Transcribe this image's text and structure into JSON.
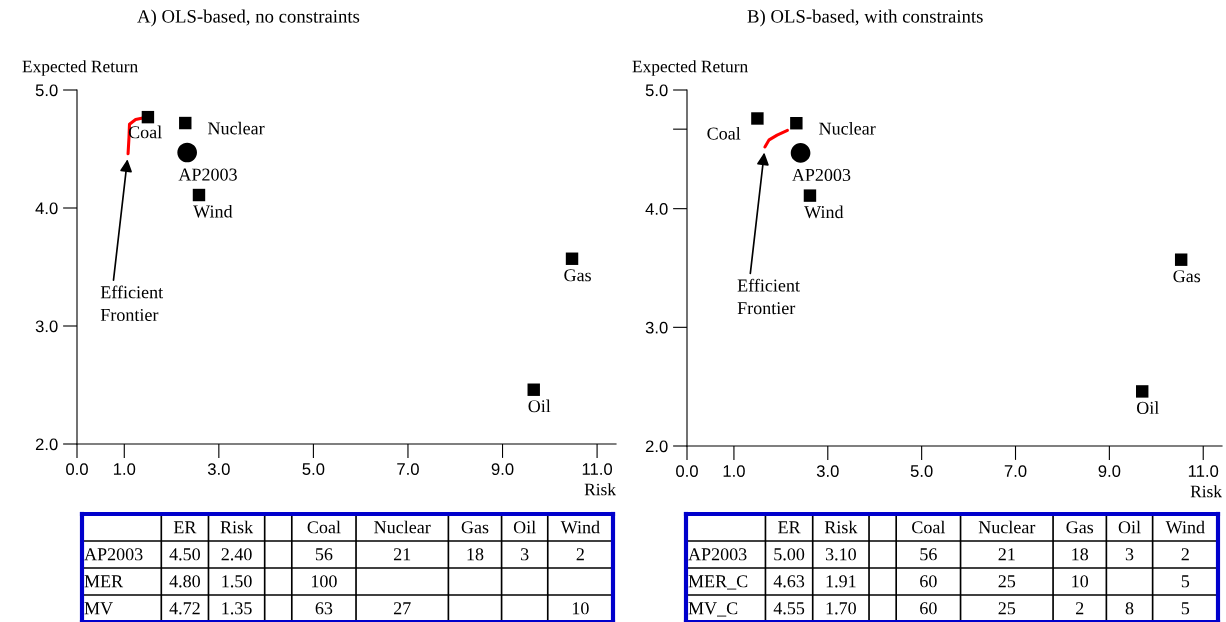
{
  "chart_data": [
    {
      "type": "scatter",
      "title": "A) OLS-based, no constraints",
      "xlabel": "Risk",
      "ylabel": "Expected Return",
      "xlim": [
        0,
        11.4
      ],
      "ylim": [
        2.0,
        5.0
      ],
      "xticks": [
        {
          "value": 0,
          "label": "0.0"
        },
        {
          "value": 1,
          "label": "1.0"
        },
        {
          "value": 3,
          "label": "3.0"
        },
        {
          "value": 5,
          "label": "5.0"
        },
        {
          "value": 7,
          "label": "7.0"
        },
        {
          "value": 9,
          "label": "9.0"
        },
        {
          "value": 11,
          "label": "11.0"
        }
      ],
      "yticks": [
        {
          "value": 2,
          "label": "2.0"
        },
        {
          "value": 3,
          "label": "3.0"
        },
        {
          "value": 4,
          "label": "4.0"
        },
        {
          "value": 5,
          "label": "5.0"
        }
      ],
      "grid": false,
      "legend": false,
      "series": [
        {
          "type": "line",
          "color": "#ff0000",
          "marker": "none",
          "line_style": "solid",
          "x": [
            1.08,
            1.1,
            1.11,
            1.24,
            1.47
          ],
          "values": [
            4.46,
            4.6,
            4.71,
            4.75,
            4.77
          ]
        },
        {
          "name": "Coal",
          "color": "#000000",
          "marker": "square",
          "x": [
            1.5
          ],
          "values": [
            4.77
          ]
        },
        {
          "name": "Nuclear",
          "color": "#000000",
          "marker": "square",
          "x": [
            2.29
          ],
          "values": [
            4.72
          ]
        },
        {
          "name": "AP2003",
          "color": "#000000",
          "marker": "circle",
          "x": [
            2.33
          ],
          "values": [
            4.47
          ]
        },
        {
          "name": "Wind",
          "color": "#000000",
          "marker": "square",
          "x": [
            2.58
          ],
          "values": [
            4.11
          ]
        },
        {
          "name": "Gas",
          "color": "#000000",
          "marker": "square",
          "x": [
            10.47
          ],
          "values": [
            3.57
          ]
        },
        {
          "name": "Oil",
          "color": "#000000",
          "marker": "square",
          "x": [
            9.66
          ],
          "values": [
            2.46
          ]
        }
      ],
      "annotations": [
        {
          "text": "Efficient\nFrontier",
          "x": 1.08,
          "y": 4.46
        }
      ]
    },
    {
      "type": "scatter",
      "title": "B) OLS-based, with constraints",
      "xlabel": "Risk",
      "ylabel": "Expected Return",
      "xlim": [
        0,
        11.4
      ],
      "ylim": [
        2.0,
        5.0
      ],
      "xticks": [
        {
          "value": 0,
          "label": "0.0"
        },
        {
          "value": 1,
          "label": "1.0"
        },
        {
          "value": 3,
          "label": "3.0"
        },
        {
          "value": 5,
          "label": "5.0"
        },
        {
          "value": 7,
          "label": "7.0"
        },
        {
          "value": 9,
          "label": "9.0"
        },
        {
          "value": 11,
          "label": "11.0"
        }
      ],
      "yticks": [
        {
          "value": 2,
          "label": "2.0"
        },
        {
          "value": 3,
          "label": "3.0"
        },
        {
          "value": 4,
          "label": "4.0"
        },
        {
          "value": 4.67,
          "label": null
        },
        {
          "value": 5,
          "label": "5.0"
        }
      ],
      "grid": false,
      "legend": false,
      "series": [
        {
          "type": "line",
          "color": "#ff0000",
          "marker": "none",
          "line_style": "solid",
          "x": [
            1.66,
            1.75,
            1.92,
            2.14
          ],
          "values": [
            4.52,
            4.58,
            4.62,
            4.66
          ]
        },
        {
          "name": "Coal",
          "color": "#000000",
          "marker": "square",
          "x": [
            1.5
          ],
          "values": [
            4.76
          ]
        },
        {
          "name": "Nuclear",
          "color": "#000000",
          "marker": "square",
          "x": [
            2.33
          ],
          "values": [
            4.72
          ]
        },
        {
          "name": "AP2003",
          "color": "#000000",
          "marker": "circle",
          "x": [
            2.42
          ],
          "values": [
            4.47
          ]
        },
        {
          "name": "Wind",
          "color": "#000000",
          "marker": "square",
          "x": [
            2.62
          ],
          "values": [
            4.11
          ]
        },
        {
          "name": "Gas",
          "color": "#000000",
          "marker": "square",
          "x": [
            10.53
          ],
          "values": [
            3.57
          ]
        },
        {
          "name": "Oil",
          "color": "#000000",
          "marker": "square",
          "x": [
            9.7
          ],
          "values": [
            2.46
          ]
        }
      ],
      "annotations": [
        {
          "text": "Efficient\nFrontier",
          "x": 1.66,
          "y": 4.52
        }
      ]
    },
    {
      "type": "other",
      "categories": [
        "ER",
        "Risk",
        null,
        "Coal",
        "Nuclear",
        "Gas",
        "Oil",
        "Wind"
      ],
      "y_categories": [
        "AP2003",
        "MER",
        "MV"
      ],
      "cell_labels": [
        [
          "4.50",
          "2.40",
          null,
          "56",
          "21",
          "18",
          "3",
          "2"
        ],
        [
          "4.80",
          "1.50",
          null,
          "100",
          null,
          null,
          null,
          null
        ],
        [
          "4.72",
          "1.35",
          null,
          "63",
          "27",
          null,
          null,
          "10"
        ]
      ]
    },
    {
      "type": "other",
      "categories": [
        "ER",
        "Risk",
        null,
        "Coal",
        "Nuclear",
        "Gas",
        "Oil",
        "Wind"
      ],
      "y_categories": [
        "AP2003",
        "MER_C",
        "MV_C"
      ],
      "cell_labels": [
        [
          "5.00",
          "3.10",
          null,
          "56",
          "21",
          "18",
          "3",
          "2"
        ],
        [
          "4.63",
          "1.91",
          null,
          "60",
          "25",
          "10",
          null,
          "5"
        ],
        [
          "4.55",
          "1.70",
          null,
          "60",
          "25",
          "2",
          "8",
          "5"
        ]
      ]
    }
  ]
}
